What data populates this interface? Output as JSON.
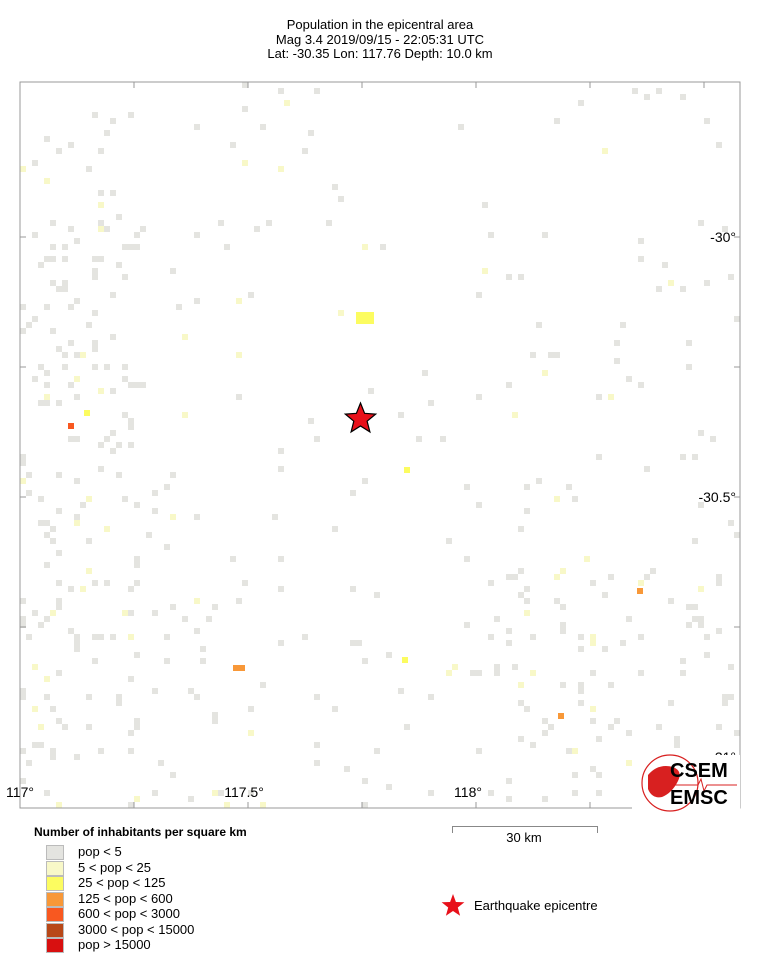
{
  "header": {
    "title": "Population in the epicentral area",
    "line2": "Mag 3.4  2019/09/15 - 22:05:31 UTC",
    "line3": "Lat: -30.35    Lon: 117.76     Depth:  10.0 km"
  },
  "map": {
    "epicentre": {
      "lat": -30.35,
      "lon": 117.76
    },
    "lon_labels": [
      "117°",
      "117.5°",
      "118°"
    ],
    "lat_labels": [
      "-30°",
      "-30.5°",
      "-31°"
    ],
    "scale_bar": "30 km"
  },
  "legend": {
    "title": "Number of inhabitants per square km",
    "items": [
      {
        "label": "pop < 5",
        "color": "#e4e4e0"
      },
      {
        "label": "5 < pop < 25",
        "color": "#f8f8c8"
      },
      {
        "label": "25 < pop < 125",
        "color": "#fcfc60"
      },
      {
        "label": "125 < pop < 600",
        "color": "#f89838"
      },
      {
        "label": "600 < pop < 3000",
        "color": "#f85820"
      },
      {
        "label": "3000 < pop < 15000",
        "color": "#b84818"
      },
      {
        "label": "pop > 15000",
        "color": "#d81010"
      }
    ],
    "epicentre_label": "Earthquake epicentre"
  },
  "logo": {
    "top": "CSEM",
    "bottom": "EMSC"
  }
}
